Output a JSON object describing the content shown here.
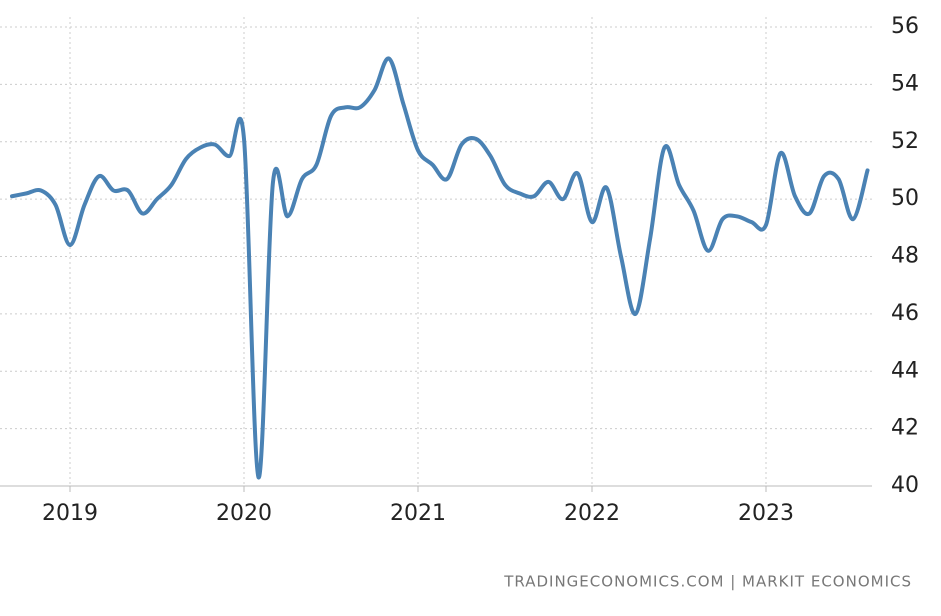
{
  "chart_data": {
    "type": "line",
    "categories": [
      null,
      null,
      null,
      null,
      "2019",
      null,
      null,
      null,
      null,
      null,
      null,
      null,
      null,
      null,
      null,
      null,
      "2020",
      null,
      null,
      null,
      null,
      null,
      null,
      null,
      null,
      null,
      null,
      null,
      "2021",
      null,
      null,
      null,
      null,
      null,
      null,
      null,
      null,
      null,
      null,
      null,
      "2022",
      null,
      null,
      null,
      null,
      null,
      null,
      null,
      null,
      null,
      null,
      null,
      "2023",
      null,
      null,
      null,
      null,
      null,
      null,
      null
    ],
    "series": [
      {
        "color": "#4a82b4",
        "values": [
          50.1,
          50.2,
          50.3,
          49.8,
          48.4,
          49.8,
          50.8,
          50.3,
          50.3,
          49.5,
          50.0,
          50.5,
          51.4,
          51.8,
          51.9,
          51.5,
          52.1,
          40.3,
          50.6,
          49.4,
          50.7,
          51.2,
          52.9,
          53.2,
          53.2,
          53.8,
          54.9,
          53.3,
          51.7,
          51.2,
          50.7,
          51.9,
          52.1,
          51.5,
          50.5,
          50.2,
          50.1,
          50.6,
          50.0,
          50.9,
          49.2,
          50.4,
          48.0,
          46.0,
          48.6,
          51.8,
          50.5,
          49.6,
          48.2,
          49.3,
          49.4,
          49.2,
          49.1,
          51.6,
          50.1,
          49.5,
          50.8,
          50.7,
          49.3,
          51.0
        ]
      }
    ],
    "ylim": [
      40,
      56
    ],
    "yticks": [
      40,
      42,
      44,
      46,
      48,
      50,
      52,
      54,
      56
    ],
    "grid": true,
    "source": "TRADINGECONOMICS.COM | MARKIT ECONOMICS"
  }
}
